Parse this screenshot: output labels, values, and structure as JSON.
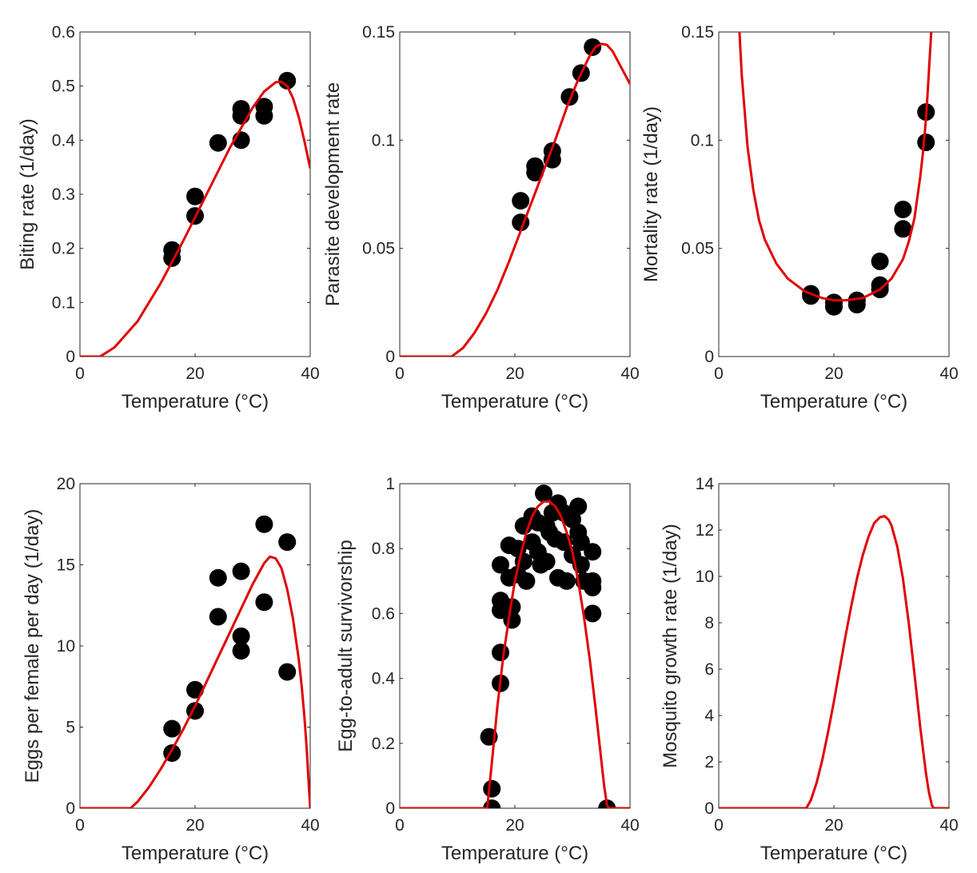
{
  "colors": {
    "curve": "#e00000",
    "points": "#000000",
    "axis": "#262626"
  },
  "chart_data": [
    {
      "type": "scatter",
      "title": "",
      "xlabel": "Temperature (°C)",
      "ylabel": "Biting rate (1/day)",
      "xlim": [
        0,
        40
      ],
      "ylim": [
        0,
        0.6
      ],
      "xticks": [
        0,
        20,
        40
      ],
      "yticks": [
        0,
        0.1,
        0.2,
        0.3,
        0.4,
        0.5,
        0.6
      ],
      "xtick_labels": [
        "0",
        "20",
        "40"
      ],
      "ytick_labels": [
        "0",
        "0.1",
        "0.2",
        "0.3",
        "0.4",
        "0.5",
        "0.6"
      ],
      "points": [
        [
          16,
          0.197
        ],
        [
          16,
          0.182
        ],
        [
          20,
          0.296
        ],
        [
          20,
          0.26
        ],
        [
          24,
          0.395
        ],
        [
          28,
          0.458
        ],
        [
          28,
          0.445
        ],
        [
          28,
          0.4
        ],
        [
          32,
          0.462
        ],
        [
          32,
          0.445
        ],
        [
          36,
          0.51
        ]
      ],
      "fit_curve": {
        "x": [
          0,
          3.5,
          6,
          10,
          14,
          18,
          22,
          26,
          30,
          32,
          34,
          35,
          36,
          37,
          38,
          39,
          40
        ],
        "y": [
          0,
          0,
          0.017,
          0.065,
          0.135,
          0.215,
          0.3,
          0.385,
          0.46,
          0.49,
          0.507,
          0.508,
          0.5,
          0.478,
          0.443,
          0.398,
          0.348
        ]
      }
    },
    {
      "type": "scatter",
      "title": "",
      "xlabel": "Temperature (°C)",
      "ylabel": "Parasite development rate",
      "xlim": [
        0,
        40
      ],
      "ylim": [
        0,
        0.15
      ],
      "xticks": [
        0,
        20,
        40
      ],
      "yticks": [
        0,
        0.05,
        0.1,
        0.15
      ],
      "xtick_labels": [
        "0",
        "20",
        "40"
      ],
      "ytick_labels": [
        "0",
        "0.05",
        "0.1",
        "0.15"
      ],
      "points": [
        [
          21,
          0.072
        ],
        [
          21,
          0.062
        ],
        [
          23.5,
          0.088
        ],
        [
          23.5,
          0.085
        ],
        [
          26.5,
          0.095
        ],
        [
          26.5,
          0.091
        ],
        [
          29.5,
          0.12
        ],
        [
          31.5,
          0.131
        ],
        [
          33.5,
          0.143
        ]
      ],
      "fit_curve": {
        "x": [
          0,
          9,
          11,
          13,
          15,
          17,
          19,
          21,
          23,
          25,
          27,
          29,
          31,
          33,
          34,
          35,
          36,
          37,
          38,
          39,
          40
        ],
        "y": [
          0,
          0,
          0.004,
          0.011,
          0.02,
          0.031,
          0.044,
          0.058,
          0.072,
          0.086,
          0.1,
          0.115,
          0.128,
          0.139,
          0.143,
          0.1445,
          0.144,
          0.141,
          0.136,
          0.131,
          0.126
        ]
      }
    },
    {
      "type": "scatter",
      "title": "",
      "xlabel": "Temperature (°C)",
      "ylabel": "Mortality rate  (1/day)",
      "xlim": [
        0,
        40
      ],
      "ylim": [
        0,
        0.15
      ],
      "xticks": [
        0,
        20,
        40
      ],
      "yticks": [
        0,
        0.05,
        0.1,
        0.15
      ],
      "xtick_labels": [
        "0",
        "20",
        "40"
      ],
      "ytick_labels": [
        "0",
        "0.05",
        "0.1",
        "0.15"
      ],
      "points": [
        [
          16,
          0.029
        ],
        [
          16,
          0.028
        ],
        [
          20,
          0.025
        ],
        [
          20,
          0.023
        ],
        [
          24,
          0.026
        ],
        [
          24,
          0.024
        ],
        [
          28,
          0.044
        ],
        [
          28,
          0.033
        ],
        [
          28,
          0.031
        ],
        [
          32,
          0.068
        ],
        [
          32,
          0.059
        ],
        [
          36,
          0.113
        ],
        [
          36,
          0.099
        ]
      ],
      "fit_curve": {
        "x": [
          3.6,
          4,
          5,
          6,
          7,
          8,
          10,
          12,
          15,
          18,
          20,
          22,
          25,
          28,
          30,
          32,
          33,
          34,
          35,
          35.5,
          35.8,
          36,
          36.2,
          36.4,
          36.6,
          36.8,
          36.9
        ],
        "y": [
          0.15,
          0.13,
          0.097,
          0.077,
          0.063,
          0.054,
          0.043,
          0.036,
          0.03,
          0.027,
          0.026,
          0.026,
          0.027,
          0.031,
          0.036,
          0.045,
          0.053,
          0.064,
          0.083,
          0.095,
          0.104,
          0.11,
          0.118,
          0.127,
          0.136,
          0.145,
          0.15
        ]
      }
    },
    {
      "type": "scatter",
      "title": "",
      "xlabel": "Temperature (°C)",
      "ylabel": "Eggs per female per day (1/day)",
      "xlim": [
        0,
        40
      ],
      "ylim": [
        0,
        20
      ],
      "xticks": [
        0,
        20,
        40
      ],
      "yticks": [
        0,
        5,
        10,
        15,
        20
      ],
      "xtick_labels": [
        "0",
        "20",
        "40"
      ],
      "ytick_labels": [
        "0",
        "5",
        "10",
        "15",
        "20"
      ],
      "points": [
        [
          16,
          4.9
        ],
        [
          16,
          3.4
        ],
        [
          20,
          7.3
        ],
        [
          20,
          6.0
        ],
        [
          24,
          14.2
        ],
        [
          24,
          11.8
        ],
        [
          28,
          14.6
        ],
        [
          28,
          10.6
        ],
        [
          28,
          9.7
        ],
        [
          32,
          17.5
        ],
        [
          32,
          12.7
        ],
        [
          36,
          16.4
        ],
        [
          36,
          8.4
        ]
      ],
      "fit_curve": {
        "x": [
          0,
          8.8,
          10,
          12,
          14,
          16,
          18,
          20,
          22,
          24,
          26,
          28,
          30,
          32,
          33,
          34,
          35,
          36,
          37,
          38,
          38.5,
          39,
          39.4,
          39.7,
          40
        ],
        "y": [
          0,
          0,
          0.4,
          1.3,
          2.4,
          3.6,
          4.9,
          6.3,
          7.8,
          9.3,
          10.8,
          12.3,
          13.8,
          15.1,
          15.5,
          15.4,
          14.8,
          13.5,
          11.7,
          9.2,
          7.6,
          5.6,
          3.6,
          1.8,
          0
        ]
      }
    },
    {
      "type": "scatter",
      "title": "",
      "xlabel": "Temperature (°C)",
      "ylabel": "Egg-to-adult survivorship",
      "xlim": [
        0,
        40
      ],
      "ylim": [
        0,
        1
      ],
      "xticks": [
        0,
        20,
        40
      ],
      "yticks": [
        0,
        0.2,
        0.4,
        0.6,
        0.8,
        1
      ],
      "xtick_labels": [
        "0",
        "20",
        "40"
      ],
      "ytick_labels": [
        "0",
        "0.2",
        "0.4",
        "0.6",
        "0.8",
        "1"
      ],
      "points": [
        [
          15.5,
          0.22
        ],
        [
          16,
          0.06
        ],
        [
          16,
          0.0
        ],
        [
          17.5,
          0.75
        ],
        [
          17.5,
          0.64
        ],
        [
          17.5,
          0.61
        ],
        [
          17.5,
          0.48
        ],
        [
          17.5,
          0.385
        ],
        [
          19,
          0.81
        ],
        [
          19,
          0.71
        ],
        [
          19.5,
          0.62
        ],
        [
          19.5,
          0.58
        ],
        [
          20.5,
          0.8
        ],
        [
          20.5,
          0.72
        ],
        [
          21.5,
          0.87
        ],
        [
          21.5,
          0.76
        ],
        [
          22,
          0.7
        ],
        [
          23,
          0.9
        ],
        [
          23,
          0.82
        ],
        [
          24,
          0.88
        ],
        [
          24,
          0.79
        ],
        [
          24.5,
          0.75
        ],
        [
          25,
          0.97
        ],
        [
          25.5,
          0.87
        ],
        [
          25.5,
          0.76
        ],
        [
          26,
          0.85
        ],
        [
          26.5,
          0.91
        ],
        [
          27,
          0.83
        ],
        [
          27.5,
          0.94
        ],
        [
          27.5,
          0.71
        ],
        [
          28.5,
          0.91
        ],
        [
          28.5,
          0.82
        ],
        [
          29,
          0.7
        ],
        [
          30,
          0.89
        ],
        [
          30,
          0.78
        ],
        [
          31,
          0.93
        ],
        [
          31,
          0.85
        ],
        [
          31.5,
          0.82
        ],
        [
          31.5,
          0.75
        ],
        [
          32,
          0.7
        ],
        [
          33.5,
          0.79
        ],
        [
          33.5,
          0.7
        ],
        [
          33.5,
          0.68
        ],
        [
          33.5,
          0.6
        ],
        [
          36,
          0.0
        ]
      ],
      "fit_curve": {
        "x": [
          0,
          15.2,
          15.6,
          16,
          16.5,
          17,
          18,
          19,
          20,
          21,
          22,
          23,
          24,
          25,
          26,
          27,
          28,
          29,
          30,
          31,
          32,
          33,
          34,
          35,
          35.5,
          36,
          36.3,
          40
        ],
        "y": [
          0,
          0,
          0.07,
          0.14,
          0.23,
          0.32,
          0.47,
          0.59,
          0.7,
          0.78,
          0.85,
          0.9,
          0.93,
          0.945,
          0.945,
          0.93,
          0.9,
          0.85,
          0.79,
          0.7,
          0.59,
          0.46,
          0.31,
          0.15,
          0.07,
          0.01,
          0,
          0
        ]
      }
    },
    {
      "type": "line",
      "title": "",
      "xlabel": "Temperature (°C)",
      "ylabel": "Mosquito growth rate (1/day)",
      "xlim": [
        0,
        40
      ],
      "ylim": [
        0,
        14
      ],
      "xticks": [
        0,
        20,
        40
      ],
      "yticks": [
        0,
        2,
        4,
        6,
        8,
        10,
        12,
        14
      ],
      "xtick_labels": [
        "0",
        "20",
        "40"
      ],
      "ytick_labels": [
        "0",
        "2",
        "4",
        "6",
        "8",
        "10",
        "12",
        "14"
      ],
      "points": [],
      "fit_curve": {
        "x": [
          0,
          15.2,
          16,
          17,
          18,
          19,
          20,
          21,
          22,
          23,
          24,
          25,
          26,
          27,
          28,
          28.8,
          29.5,
          30,
          31,
          32,
          33,
          34,
          35,
          36,
          36.5,
          37,
          37.3,
          40
        ],
        "y": [
          0,
          0,
          0.35,
          1.1,
          2.1,
          3.3,
          4.6,
          6.0,
          7.4,
          8.7,
          9.9,
          10.9,
          11.7,
          12.3,
          12.55,
          12.6,
          12.45,
          12.2,
          11.3,
          9.9,
          8.0,
          5.8,
          3.5,
          1.5,
          0.7,
          0.15,
          0,
          0
        ]
      }
    }
  ]
}
